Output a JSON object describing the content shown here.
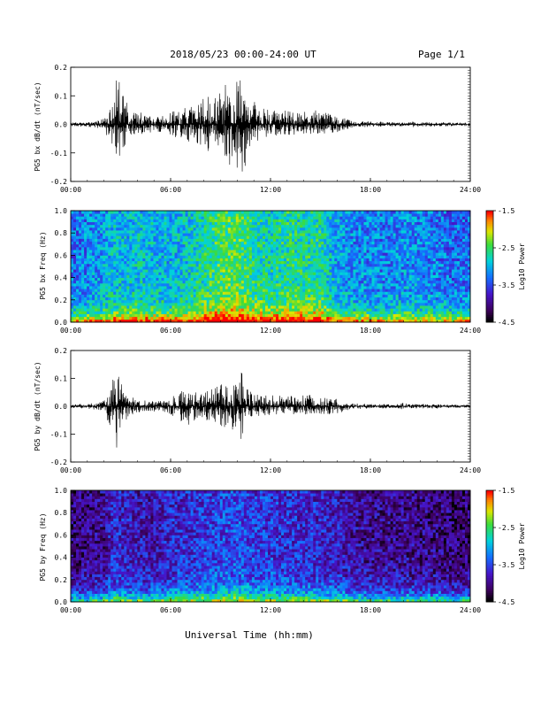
{
  "header": {
    "title": "2018/05/23  00:00-24:00 UT",
    "page": "Page 1/1"
  },
  "footer": {
    "xlabel": "Universal Time (hh:mm)"
  },
  "chart_data": [
    {
      "type": "line",
      "ylabel": "PG5 bx dB/dt (nT/sec)",
      "xlim": [
        0,
        24
      ],
      "ylim": [
        -0.2,
        0.2
      ],
      "xticklabels": [
        "00:00",
        "06:00",
        "12:00",
        "18:00",
        "24:00"
      ],
      "yticklabels": [
        "0.2",
        "0.1",
        "0.0",
        "-0.1",
        "-0.2"
      ],
      "yticks": [
        0.2,
        0.1,
        0.0,
        -0.1,
        -0.2
      ],
      "series": [
        {
          "x": [
            0,
            0.5,
            1,
            1.5,
            2,
            2.3,
            2.5,
            2.7,
            2.9,
            3.1,
            3.3,
            3.5,
            3.7,
            4,
            4.5,
            5,
            5.5,
            6,
            6.5,
            7,
            7.5,
            8,
            8.5,
            9,
            9.5,
            10,
            10.3,
            10.5,
            10.7,
            11,
            11.5,
            12,
            12.5,
            13,
            13.5,
            14,
            14.5,
            15,
            15.5,
            16,
            16.5,
            17,
            17.5,
            18,
            18.5,
            19,
            19.5,
            20,
            20.5,
            21,
            21.5,
            22,
            22.5,
            23,
            23.5,
            24
          ],
          "y_max": [
            0.006,
            0.008,
            0.01,
            0.012,
            0.02,
            0.05,
            0.1,
            0.16,
            0.18,
            0.12,
            0.09,
            0.06,
            0.07,
            0.05,
            0.03,
            0.03,
            0.03,
            0.04,
            0.06,
            0.06,
            0.07,
            0.1,
            0.11,
            0.13,
            0.15,
            0.17,
            0.16,
            0.12,
            0.1,
            0.08,
            0.06,
            0.05,
            0.05,
            0.05,
            0.04,
            0.05,
            0.05,
            0.05,
            0.04,
            0.03,
            0.02,
            0.012,
            0.01,
            0.01,
            0.01,
            0.008,
            0.008,
            0.008,
            0.01,
            0.008,
            0.008,
            0.008,
            0.008,
            0.006,
            0.006,
            0.006
          ],
          "y_min": [
            -0.006,
            -0.008,
            -0.01,
            -0.012,
            -0.02,
            -0.06,
            -0.12,
            -0.15,
            -0.13,
            -0.1,
            -0.07,
            -0.05,
            -0.05,
            -0.04,
            -0.03,
            -0.03,
            -0.03,
            -0.04,
            -0.05,
            -0.06,
            -0.08,
            -0.09,
            -0.1,
            -0.11,
            -0.14,
            -0.16,
            -0.2,
            -0.15,
            -0.09,
            -0.07,
            -0.05,
            -0.04,
            -0.04,
            -0.04,
            -0.04,
            -0.04,
            -0.04,
            -0.04,
            -0.03,
            -0.03,
            -0.02,
            -0.012,
            -0.01,
            -0.01,
            -0.01,
            -0.008,
            -0.008,
            -0.008,
            -0.01,
            -0.008,
            -0.008,
            -0.008,
            -0.008,
            -0.006,
            -0.006,
            -0.006
          ]
        }
      ]
    },
    {
      "type": "heatmap",
      "ylabel": "PG5 bx Freq (Hz)",
      "xlim": [
        0,
        24
      ],
      "ylim": [
        0,
        1.0
      ],
      "xticklabels": [
        "00:00",
        "06:00",
        "12:00",
        "18:00",
        "24:00"
      ],
      "yticklabels": [
        "1.0",
        "0.8",
        "0.6",
        "0.4",
        "0.2",
        "0.0"
      ],
      "yticks": [
        1.0,
        0.8,
        0.6,
        0.4,
        0.2,
        0.0
      ],
      "colorbar": {
        "label": "Log10 Power",
        "min": -4.5,
        "max": -1.5,
        "ticklabels": [
          "-1.5",
          "-2.5",
          "-3.5",
          "-4.5"
        ],
        "ticks": [
          -1.5,
          -2.5,
          -3.5,
          -4.5
        ]
      },
      "activity_x": [
        0,
        1,
        2,
        2.5,
        3,
        4,
        5,
        6,
        7,
        8,
        9,
        10,
        10.5,
        11,
        12,
        13,
        14,
        15,
        16,
        17,
        18,
        19,
        20,
        21,
        22,
        23,
        24
      ],
      "activity": [
        0.45,
        0.5,
        0.55,
        0.6,
        0.6,
        0.62,
        0.6,
        0.58,
        0.62,
        0.7,
        0.78,
        0.8,
        0.75,
        0.72,
        0.68,
        0.72,
        0.7,
        0.72,
        0.55,
        0.5,
        0.5,
        0.48,
        0.52,
        0.5,
        0.48,
        0.45,
        0.45
      ]
    },
    {
      "type": "line",
      "ylabel": "PG5 by dB/dt (nT/sec)",
      "xlim": [
        0,
        24
      ],
      "ylim": [
        -0.2,
        0.2
      ],
      "xticklabels": [
        "00:00",
        "06:00",
        "12:00",
        "18:00",
        "24:00"
      ],
      "yticklabels": [
        "0.2",
        "0.1",
        "0.0",
        "-0.1",
        "-0.2"
      ],
      "yticks": [
        0.2,
        0.1,
        0.0,
        -0.1,
        -0.2
      ],
      "series": [
        {
          "x": [
            0,
            0.5,
            1,
            1.5,
            2,
            2.3,
            2.5,
            2.7,
            2.9,
            3.1,
            3.3,
            3.5,
            3.7,
            4,
            4.5,
            5,
            5.5,
            6,
            6.5,
            7,
            7.5,
            8,
            8.5,
            9,
            9.5,
            10,
            10.3,
            10.5,
            10.7,
            11,
            11.5,
            12,
            12.5,
            13,
            13.5,
            14,
            14.5,
            15,
            15.5,
            16,
            16.5,
            17,
            17.5,
            18,
            18.5,
            19,
            19.5,
            20,
            20.5,
            21,
            21.5,
            22,
            22.5,
            23,
            23.5,
            24
          ],
          "y_max": [
            0.006,
            0.008,
            0.01,
            0.012,
            0.02,
            0.05,
            0.1,
            0.12,
            0.12,
            0.09,
            0.06,
            0.04,
            0.04,
            0.03,
            0.02,
            0.02,
            0.02,
            0.03,
            0.06,
            0.05,
            0.05,
            0.06,
            0.07,
            0.08,
            0.1,
            0.13,
            0.12,
            0.08,
            0.06,
            0.05,
            0.04,
            0.04,
            0.04,
            0.04,
            0.04,
            0.04,
            0.04,
            0.03,
            0.03,
            0.03,
            0.015,
            0.01,
            0.01,
            0.01,
            0.008,
            0.008,
            0.008,
            0.012,
            0.008,
            0.008,
            0.008,
            0.008,
            0.006,
            0.006,
            0.006,
            0.006
          ],
          "y_min": [
            -0.006,
            -0.008,
            -0.01,
            -0.012,
            -0.02,
            -0.08,
            -0.16,
            -0.17,
            -0.12,
            -0.08,
            -0.05,
            -0.04,
            -0.04,
            -0.03,
            -0.02,
            -0.02,
            -0.02,
            -0.03,
            -0.05,
            -0.07,
            -0.05,
            -0.05,
            -0.06,
            -0.07,
            -0.08,
            -0.11,
            -0.14,
            -0.09,
            -0.05,
            -0.04,
            -0.04,
            -0.03,
            -0.03,
            -0.03,
            -0.03,
            -0.03,
            -0.03,
            -0.03,
            -0.03,
            -0.03,
            -0.015,
            -0.01,
            -0.01,
            -0.01,
            -0.008,
            -0.008,
            -0.008,
            -0.012,
            -0.008,
            -0.008,
            -0.008,
            -0.008,
            -0.006,
            -0.006,
            -0.006,
            -0.006
          ]
        }
      ]
    },
    {
      "type": "heatmap",
      "ylabel": "PG5 by Freq (Hz)",
      "xlim": [
        0,
        24
      ],
      "ylim": [
        0,
        1.0
      ],
      "xticklabels": [
        "00:00",
        "06:00",
        "12:00",
        "18:00",
        "24:00"
      ],
      "yticklabels": [
        "1.0",
        "0.8",
        "0.6",
        "0.4",
        "0.2",
        "0.0"
      ],
      "yticks": [
        1.0,
        0.8,
        0.6,
        0.4,
        0.2,
        0.0
      ],
      "colorbar": {
        "label": "Log10 Power",
        "min": -4.5,
        "max": -1.5,
        "ticklabels": [
          "-1.5",
          "-2.5",
          "-3.5",
          "-4.5"
        ],
        "ticks": [
          -1.5,
          -2.5,
          -3.5,
          -4.5
        ]
      },
      "activity_x": [
        0,
        1,
        2,
        2.5,
        3,
        4,
        5,
        6,
        7,
        8,
        9,
        10,
        10.5,
        11,
        12,
        13,
        14,
        15,
        16,
        17,
        18,
        19,
        20,
        21,
        22,
        23,
        24
      ],
      "activity": [
        0.15,
        0.18,
        0.2,
        0.3,
        0.3,
        0.25,
        0.25,
        0.3,
        0.32,
        0.35,
        0.38,
        0.4,
        0.38,
        0.36,
        0.35,
        0.33,
        0.32,
        0.3,
        0.28,
        0.22,
        0.2,
        0.2,
        0.2,
        0.18,
        0.18,
        0.15,
        0.15
      ]
    }
  ]
}
